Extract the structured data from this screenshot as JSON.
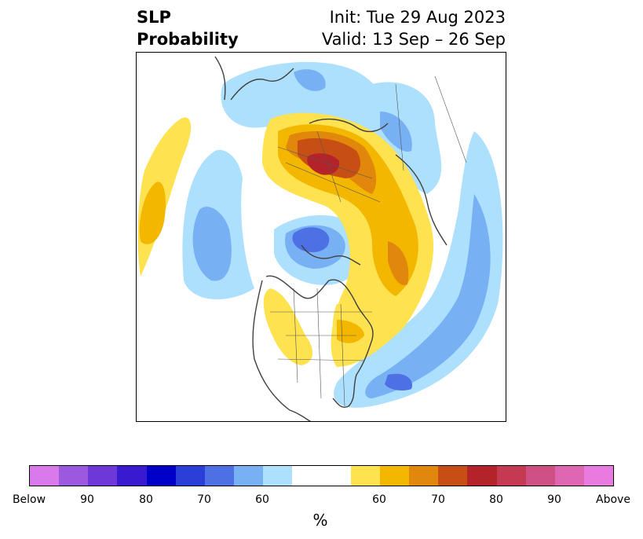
{
  "title": {
    "left_line1": "SLP",
    "left_line2": "Probability",
    "right_line1": "Init: Tue 29 Aug 2023",
    "right_line2": "Valid: 13 Sep – 26 Sep"
  },
  "map": {
    "projection": "north-polar-stereographic",
    "regions": "North America, Arctic, Europe, North Atlantic, North Pacific",
    "features": [
      "coastlines",
      "country-borders",
      "us-state-borders",
      "canadian-province-borders"
    ]
  },
  "colorbar": {
    "label": "%",
    "colors": [
      "#d979ea",
      "#9b59e0",
      "#6e38d8",
      "#3a1ad0",
      "#0000c8",
      "#2a3ed8",
      "#4d70e4",
      "#78b0f4",
      "#ade0fc",
      "#ffffff",
      "#ffffff",
      "#fee24f",
      "#f3b700",
      "#e0870c",
      "#c84f14",
      "#b4232a",
      "#c43a52",
      "#cf5184",
      "#de66b2",
      "#e87ae0"
    ],
    "ticks": [
      "Below",
      "90",
      "80",
      "70",
      "60",
      "60",
      "70",
      "80",
      "90",
      "Above"
    ]
  }
}
